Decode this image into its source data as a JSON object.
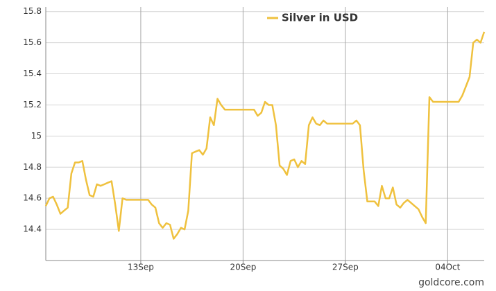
{
  "chart_data": {
    "type": "line",
    "legend": "top",
    "grid": true,
    "source": "goldcore.com",
    "categories": [
      null,
      null,
      null,
      null,
      null,
      null,
      null,
      null,
      null,
      null,
      null,
      null,
      null,
      null,
      null,
      null,
      null,
      null,
      null,
      null,
      null,
      null,
      null,
      null,
      null,
      null,
      "13Sep",
      null,
      null,
      null,
      null,
      null,
      null,
      null,
      null,
      null,
      null,
      null,
      null,
      null,
      null,
      null,
      null,
      null,
      null,
      null,
      null,
      null,
      null,
      null,
      null,
      null,
      null,
      null,
      "20Sep",
      null,
      null,
      null,
      null,
      null,
      null,
      null,
      null,
      null,
      null,
      null,
      null,
      null,
      null,
      null,
      null,
      null,
      null,
      null,
      null,
      null,
      null,
      null,
      null,
      null,
      null,
      null,
      "27Sep",
      null,
      null,
      null,
      null,
      null,
      null,
      null,
      null,
      null,
      null,
      null,
      null,
      null,
      null,
      null,
      null,
      null,
      null,
      null,
      null,
      null,
      null,
      null,
      null,
      null,
      null,
      null,
      "04Oct",
      null,
      null,
      null,
      null,
      null,
      null,
      null,
      null,
      null,
      null
    ],
    "series": [
      {
        "name": "Silver in USD",
        "color": "#efc13e",
        "values": [
          14.55,
          14.6,
          14.61,
          14.56,
          14.5,
          14.52,
          14.54,
          14.76,
          14.83,
          14.83,
          14.84,
          14.72,
          14.62,
          14.61,
          14.69,
          14.68,
          14.69,
          14.7,
          14.71,
          14.56,
          14.39,
          14.6,
          14.59,
          14.59,
          14.59,
          14.59,
          14.59,
          14.59,
          14.59,
          14.56,
          14.54,
          14.44,
          14.41,
          14.44,
          14.43,
          14.34,
          14.37,
          14.41,
          14.4,
          14.52,
          14.89,
          14.9,
          14.91,
          14.88,
          14.92,
          15.12,
          15.07,
          15.24,
          15.2,
          15.17,
          15.17,
          15.17,
          15.17,
          15.17,
          15.17,
          15.17,
          15.17,
          15.17,
          15.13,
          15.15,
          15.22,
          15.2,
          15.2,
          15.07,
          14.81,
          14.79,
          14.75,
          14.84,
          14.85,
          14.8,
          14.84,
          14.82,
          15.07,
          15.12,
          15.08,
          15.07,
          15.1,
          15.08,
          15.08,
          15.08,
          15.08,
          15.08,
          15.08,
          15.08,
          15.08,
          15.1,
          15.07,
          14.78,
          14.58,
          14.58,
          14.58,
          14.55,
          14.68,
          14.6,
          14.6,
          14.67,
          14.56,
          14.54,
          14.57,
          14.59,
          14.57,
          14.55,
          14.53,
          14.48,
          14.44,
          15.25,
          15.22,
          15.22,
          15.22,
          15.22,
          15.22,
          15.22,
          15.22,
          15.22,
          15.26,
          15.32,
          15.38,
          15.6,
          15.62,
          15.6,
          15.67
        ]
      }
    ],
    "ylim": [
      14.2,
      15.83
    ],
    "yticks": [
      14.4,
      14.6,
      14.8,
      15,
      15.2,
      15.4,
      15.6,
      15.8
    ]
  }
}
